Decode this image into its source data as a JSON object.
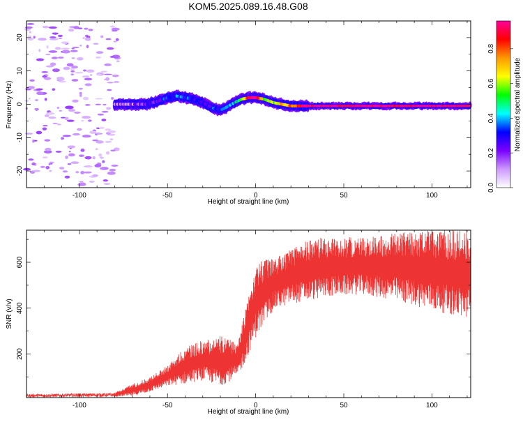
{
  "title": "KOM5.2025.089.16.48.G08",
  "chart_data": [
    {
      "type": "heatmap",
      "name": "spectrogram",
      "xlabel": "Height of straight line (km)",
      "ylabel": "Frequency (Hz)",
      "xlim": [
        -130,
        122
      ],
      "ylim": [
        -25,
        25
      ],
      "xticks": [
        -100,
        -50,
        0,
        50,
        100
      ],
      "yticks": [
        -20,
        -10,
        0,
        10,
        20
      ],
      "colorbar": {
        "label": "Normalized spectral amplitude",
        "range": [
          0,
          0.96
        ],
        "ticks": [
          "0.0",
          "0.2",
          "0.4",
          "0.6",
          "0.8"
        ],
        "colormap": [
          "#ffffff",
          "#cc99ff",
          "#7a00ff",
          "#0000ff",
          "#00ffff",
          "#00ff00",
          "#ffff00",
          "#ff9900",
          "#ff0000",
          "#ff0099"
        ]
      },
      "ridge": {
        "x": [
          -78,
          -70,
          -62,
          -55,
          -50,
          -45,
          -40,
          -35,
          -30,
          -25,
          -20,
          -17,
          -12,
          -8,
          -4,
          0,
          5,
          10,
          15,
          20,
          25,
          30,
          40,
          60,
          80,
          100,
          120
        ],
        "freq": [
          0,
          0,
          0,
          1,
          2,
          2.5,
          2,
          1.5,
          0.5,
          -1,
          -1.8,
          -1,
          0.5,
          1.5,
          2,
          2,
          1.5,
          0.5,
          0,
          -0.5,
          -0.5,
          -0.5,
          -0.5,
          -0.5,
          -0.5,
          -0.5,
          -0.5
        ],
        "amplitude": [
          0.15,
          0.15,
          0.2,
          0.3,
          0.3,
          0.35,
          0.3,
          0.3,
          0.3,
          0.3,
          0.3,
          0.35,
          0.4,
          0.6,
          0.9,
          0.95,
          0.6,
          0.6,
          0.7,
          0.75,
          0.9,
          0.95,
          0.95,
          0.95,
          0.95,
          0.95,
          0.9
        ]
      }
    },
    {
      "type": "line",
      "name": "snr",
      "xlabel": "Height of straight line (km)",
      "ylabel": "SNR (v/v)",
      "xlim": [
        -130,
        122
      ],
      "ylim": [
        10,
        740
      ],
      "xticks": [
        -100,
        -50,
        0,
        50,
        100
      ],
      "yticks": [
        200,
        400,
        600
      ],
      "color": "#ee3333",
      "envelope": {
        "x": [
          -130,
          -80,
          -70,
          -60,
          -50,
          -40,
          -30,
          -20,
          -10,
          -5,
          0,
          10,
          20,
          30,
          40,
          60,
          80,
          100,
          122
        ],
        "lower": [
          12,
          14,
          15,
          35,
          60,
          70,
          85,
          60,
          100,
          180,
          270,
          390,
          420,
          430,
          450,
          460,
          430,
          390,
          350
        ],
        "upper": [
          25,
          30,
          70,
          100,
          150,
          230,
          260,
          280,
          250,
          440,
          600,
          620,
          660,
          700,
          710,
          710,
          730,
          740,
          740
        ]
      }
    }
  ]
}
